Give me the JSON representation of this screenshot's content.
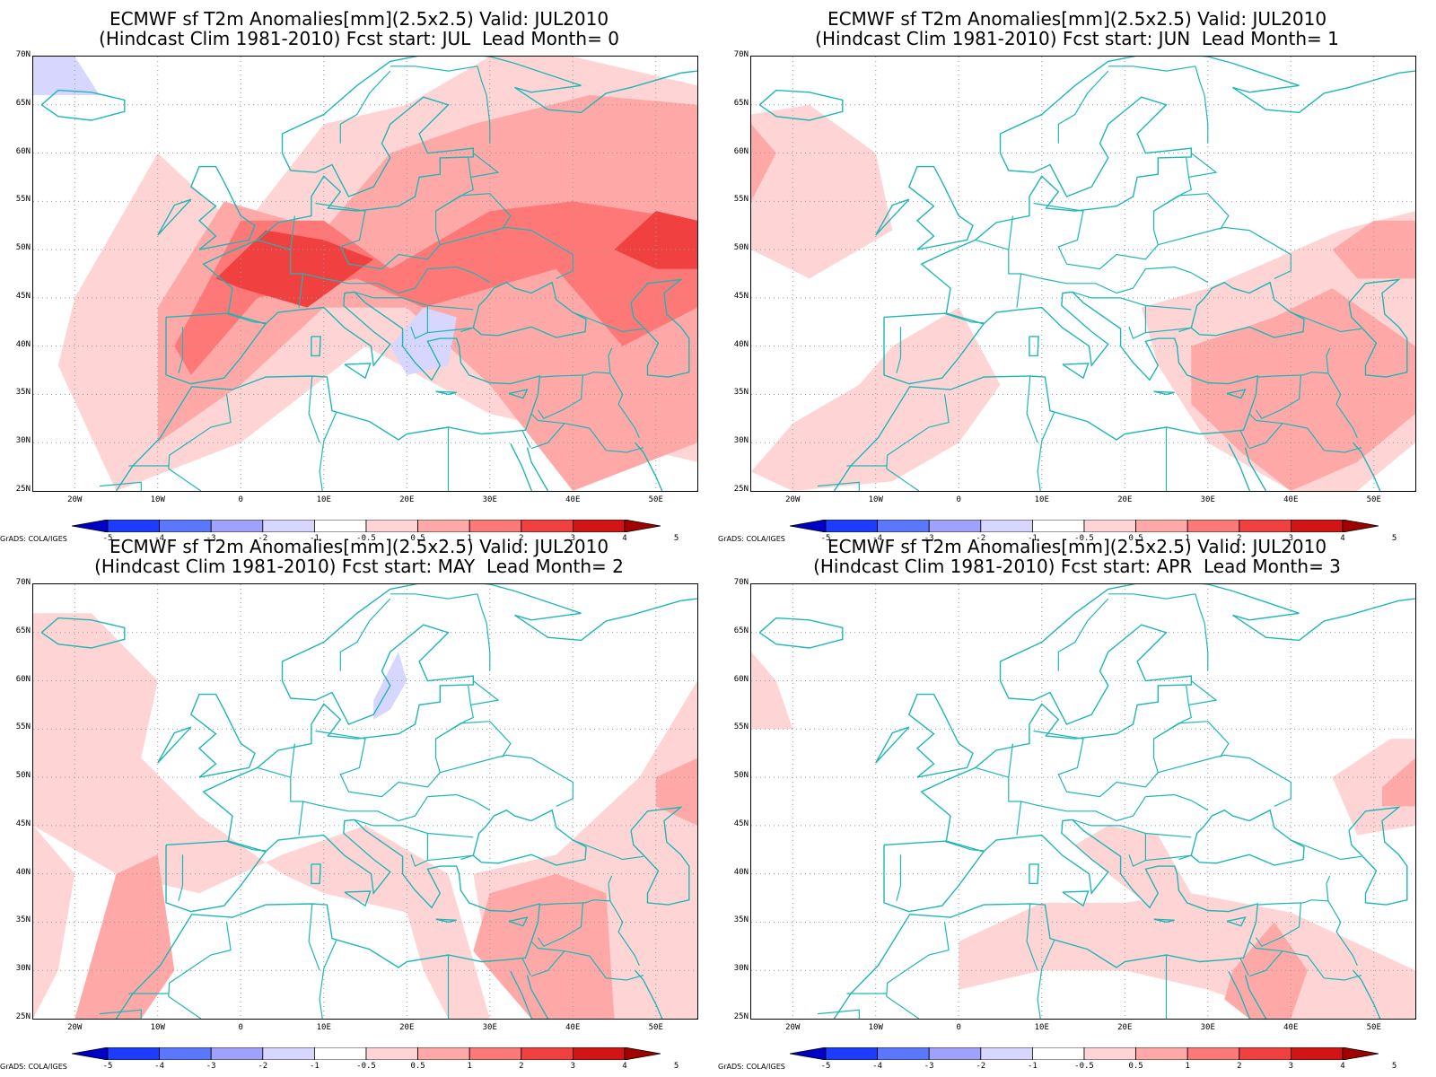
{
  "panels": [
    {
      "title1": "ECMWF sf T2m Anomalies[mm](2.5x2.5) Valid: JUL2010",
      "title2": "(Hindcast Clim 1981-2010) Fcst start: JUL  Lead Month= 0",
      "lead_month": 0,
      "forecast_start": "JUL",
      "anomaly_regions": [
        {
          "label": "0.5 to 1",
          "lon": [
            -20,
            -10,
            0,
            10,
            20,
            30,
            40,
            55,
            55,
            30,
            15,
            0,
            -15,
            -22
          ],
          "lat": [
            45,
            60,
            52,
            63,
            65,
            70,
            70,
            67,
            28,
            33,
            40,
            30,
            25,
            38
          ]
        },
        {
          "label": "1 to 2",
          "lon": [
            -10,
            -2,
            10,
            18,
            28,
            42,
            55,
            55,
            40,
            30,
            20,
            10,
            0,
            -10
          ],
          "lat": [
            44,
            55,
            52,
            60,
            63,
            66,
            65,
            30,
            25,
            36,
            44,
            44,
            36,
            30
          ]
        },
        {
          "label": "2 to 3",
          "lon": [
            -8,
            0,
            10,
            18,
            30,
            40,
            55,
            55,
            46,
            38,
            22,
            14,
            2,
            -6
          ],
          "lat": [
            40,
            53,
            53,
            48,
            54,
            55,
            53,
            44,
            40,
            48,
            44,
            47,
            45,
            37
          ]
        },
        {
          "label": "3 to 4",
          "lon": [
            -3,
            3,
            10,
            16,
            8,
            0,
            -3
          ],
          "lat": [
            47,
            52,
            51,
            49,
            44,
            46,
            47
          ]
        },
        {
          "label": "3 to 4",
          "lon": [
            45,
            50,
            55,
            55,
            50,
            45
          ],
          "lat": [
            50,
            54,
            53,
            48,
            48,
            50
          ]
        },
        {
          "label": "-1 to -0.5",
          "lon": [
            18,
            22,
            26,
            25,
            20,
            18
          ],
          "lat": [
            40,
            44,
            43,
            38,
            37,
            40
          ]
        },
        {
          "label": "-1 to -0.5",
          "lon": [
            -25,
            -20,
            -17,
            -25
          ],
          "lat": [
            70,
            70,
            66,
            66
          ]
        }
      ]
    },
    {
      "title1": "ECMWF sf T2m Anomalies[mm](2.5x2.5) Valid: JUL2010",
      "title2": "(Hindcast Clim 1981-2010) Fcst start: JUN  Lead Month= 1",
      "lead_month": 1,
      "forecast_start": "JUN",
      "anomaly_regions": [
        {
          "label": "0.5 to 1",
          "lon": [
            -25,
            -18,
            -10,
            -8,
            -18,
            -25
          ],
          "lat": [
            64,
            65,
            60,
            52,
            47,
            50
          ]
        },
        {
          "label": "0.5 to 1",
          "lon": [
            -20,
            -8,
            0,
            5,
            0,
            -8,
            -12,
            -20,
            -25
          ],
          "lat": [
            25,
            26,
            30,
            36,
            44,
            40,
            36,
            32,
            27
          ]
        },
        {
          "label": "0.5 to 1",
          "lon": [
            22,
            30,
            38,
            46,
            55,
            55,
            48,
            40,
            30,
            24
          ],
          "lat": [
            44,
            46,
            49,
            52,
            54,
            30,
            25,
            25,
            30,
            38
          ]
        },
        {
          "label": "1 to 2",
          "lon": [
            28,
            38,
            45,
            55,
            55,
            48,
            40,
            34,
            28
          ],
          "lat": [
            40,
            43,
            46,
            40,
            33,
            28,
            25,
            29,
            34
          ]
        },
        {
          "label": "1 to 2",
          "lon": [
            45,
            50,
            55,
            55,
            48
          ],
          "lat": [
            50,
            53,
            53,
            47,
            47
          ]
        },
        {
          "label": "1 to 2",
          "lon": [
            -25,
            -22,
            -25
          ],
          "lat": [
            63,
            60,
            55
          ]
        }
      ]
    },
    {
      "title1": "ECMWF sf T2m Anomalies[mm](2.5x2.5) Valid: JUL2010",
      "title2": "(Hindcast Clim 1981-2010) Fcst start: MAY  Lead Month= 2",
      "lead_month": 2,
      "forecast_start": "MAY",
      "anomaly_regions": [
        {
          "label": "0.5 to 1",
          "lon": [
            -25,
            -18,
            -10,
            -12,
            -5,
            5,
            10,
            20,
            22,
            25,
            30,
            25,
            15,
            5,
            -5,
            -15,
            -25
          ],
          "lat": [
            67,
            67,
            60,
            52,
            46,
            40,
            38,
            36,
            30,
            25,
            25,
            40,
            45,
            42,
            38,
            40,
            45
          ]
        },
        {
          "label": "0.5 to 1",
          "lon": [
            -25,
            -20,
            -22,
            -25
          ],
          "lat": [
            45,
            40,
            30,
            25
          ]
        },
        {
          "label": "0.5 to 1",
          "lon": [
            28,
            38,
            48,
            55,
            55,
            40,
            30
          ],
          "lat": [
            40,
            42,
            50,
            60,
            25,
            25,
            30
          ]
        },
        {
          "label": "1 to 2",
          "lon": [
            -15,
            -10,
            -8,
            -12,
            -20
          ],
          "lat": [
            40,
            42,
            30,
            25,
            25
          ]
        },
        {
          "label": "1 to 2",
          "lon": [
            30,
            38,
            44,
            45,
            35,
            28
          ],
          "lat": [
            38,
            40,
            38,
            25,
            25,
            32
          ]
        },
        {
          "label": "1 to 2",
          "lon": [
            50,
            55,
            55,
            50
          ],
          "lat": [
            50,
            52,
            45,
            47
          ]
        },
        {
          "label": "-1 to -0.5",
          "lon": [
            16,
            19,
            20,
            18,
            16
          ],
          "lat": [
            58,
            63,
            60,
            57,
            56
          ]
        }
      ]
    },
    {
      "title1": "ECMWF sf T2m Anomalies[mm](2.5x2.5) Valid: JUL2010",
      "title2": "(Hindcast Clim 1981-2010) Fcst start: APR  Lead Month= 3",
      "lead_month": 3,
      "forecast_start": "APR",
      "anomaly_regions": [
        {
          "label": "0.5 to 1",
          "lon": [
            -25,
            -22,
            -20,
            -25
          ],
          "lat": [
            63,
            60,
            55,
            55
          ]
        },
        {
          "label": "0.5 to 1",
          "lon": [
            0,
            10,
            20,
            28,
            40,
            55,
            55,
            40,
            30,
            20,
            10,
            0
          ],
          "lat": [
            33,
            37,
            37,
            38,
            36,
            30,
            25,
            25,
            28,
            30,
            30,
            28
          ]
        },
        {
          "label": "0.5 to 1",
          "lon": [
            14,
            18,
            24,
            28,
            24,
            18
          ],
          "lat": [
            43,
            45,
            44,
            38,
            36,
            40
          ]
        },
        {
          "label": "0.5 to 1",
          "lon": [
            45,
            52,
            55,
            55,
            48
          ],
          "lat": [
            50,
            54,
            54,
            45,
            44
          ]
        },
        {
          "label": "1 to 2",
          "lon": [
            33,
            38,
            42,
            40,
            35,
            32
          ],
          "lat": [
            30,
            35,
            30,
            25,
            25,
            27
          ]
        },
        {
          "label": "1 to 2",
          "lon": [
            51,
            55,
            55,
            51
          ],
          "lat": [
            49,
            52,
            47,
            47
          ]
        }
      ]
    }
  ],
  "lat_labels": [
    "70N",
    "65N",
    "60N",
    "55N",
    "50N",
    "45N",
    "40N",
    "35N",
    "30N",
    "25N"
  ],
  "lon_labels": [
    "20W",
    "10W",
    "0",
    "10E",
    "20E",
    "30E",
    "40E",
    "50E"
  ],
  "colorbar": {
    "labels": [
      "-5",
      "-4",
      "-3",
      "-2",
      "-1",
      "-0.5",
      "0.5",
      "1",
      "2",
      "3",
      "4",
      "5"
    ],
    "colors": [
      "#0000c8",
      "#1e3cff",
      "#5a78ff",
      "#a0a0ff",
      "#d6d6ff",
      "#ffffff",
      "#ffd4d4",
      "#ffa8a8",
      "#ff7878",
      "#f04040",
      "#d21414",
      "#a00000"
    ]
  },
  "credit": "GrADS: COLA/IGES",
  "map_extent": {
    "lon_min": -25,
    "lon_max": 55,
    "lat_min": 25,
    "lat_max": 70
  }
}
